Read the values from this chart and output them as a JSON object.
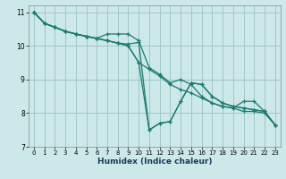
{
  "xlabel": "Humidex (Indice chaleur)",
  "bg_color": "#cce8e8",
  "line_color": "#1a7a6e",
  "grid_color": "#a0c8c8",
  "xlim": [
    -0.5,
    23.5
  ],
  "ylim": [
    7,
    11.2
  ],
  "xticks": [
    0,
    1,
    2,
    3,
    4,
    5,
    6,
    7,
    8,
    9,
    10,
    11,
    12,
    13,
    14,
    15,
    16,
    17,
    18,
    19,
    20,
    21,
    22,
    23
  ],
  "yticks": [
    7,
    8,
    9,
    10,
    11
  ],
  "lines": [
    {
      "x": [
        0,
        1,
        2,
        3,
        4,
        5,
        6,
        7,
        8,
        9,
        10,
        11,
        12,
        13,
        14,
        15,
        16,
        17,
        18,
        19,
        20,
        21,
        22,
        23
      ],
      "y": [
        11.0,
        10.67,
        10.55,
        10.43,
        10.35,
        10.28,
        10.22,
        10.15,
        10.08,
        10.0,
        9.5,
        9.3,
        9.1,
        8.85,
        8.7,
        8.6,
        8.45,
        8.3,
        8.2,
        8.15,
        8.05,
        8.05,
        8.0,
        7.65
      ]
    },
    {
      "x": [
        0,
        1,
        2,
        3,
        4,
        5,
        6,
        7,
        8,
        9,
        10,
        11,
        12,
        13,
        14,
        15,
        16,
        17,
        18,
        19,
        20,
        21,
        22,
        23
      ],
      "y": [
        11.0,
        10.67,
        10.55,
        10.43,
        10.35,
        10.28,
        10.22,
        10.35,
        10.35,
        10.35,
        10.15,
        9.35,
        9.15,
        8.9,
        9.0,
        8.85,
        8.5,
        8.3,
        8.2,
        8.15,
        8.35,
        8.35,
        8.05,
        7.65
      ]
    },
    {
      "x": [
        0,
        1,
        2,
        3,
        4,
        5,
        6,
        7,
        8,
        9,
        10,
        11,
        12,
        13,
        14,
        15,
        16,
        17,
        18,
        19,
        20,
        21,
        22,
        23
      ],
      "y": [
        11.0,
        10.67,
        10.55,
        10.43,
        10.35,
        10.28,
        10.22,
        10.15,
        10.08,
        10.05,
        10.1,
        7.5,
        7.7,
        7.75,
        8.35,
        8.9,
        8.85,
        8.5,
        8.3,
        8.2,
        8.15,
        8.1,
        8.05,
        7.65
      ]
    },
    {
      "x": [
        0,
        1,
        2,
        3,
        4,
        5,
        6,
        7,
        8,
        9,
        10,
        11,
        12,
        13,
        14,
        15,
        16,
        17,
        18,
        19,
        20,
        21,
        22,
        23
      ],
      "y": [
        11.0,
        10.67,
        10.55,
        10.43,
        10.35,
        10.28,
        10.22,
        10.15,
        10.08,
        10.0,
        9.5,
        7.5,
        7.7,
        7.75,
        8.35,
        8.9,
        8.85,
        8.5,
        8.3,
        8.2,
        8.15,
        8.1,
        8.05,
        7.65
      ]
    }
  ]
}
